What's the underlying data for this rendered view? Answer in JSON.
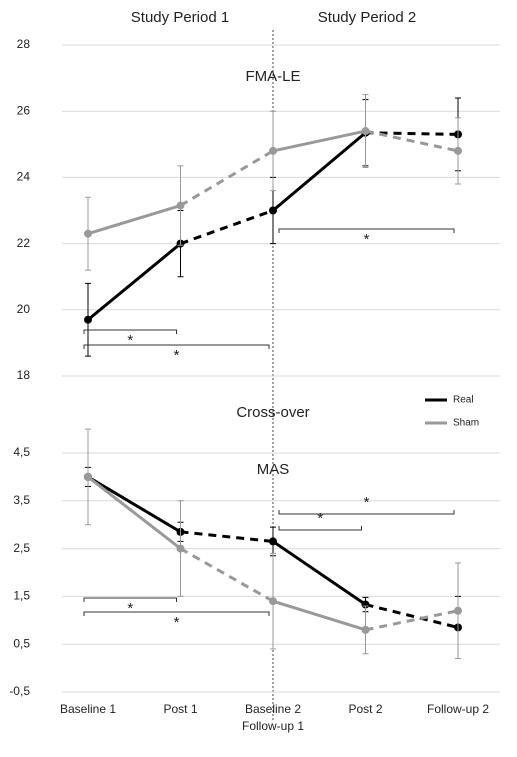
{
  "header": {
    "period_1": "Study Period  1",
    "period_2": "Study Period  2"
  },
  "annotation": "Cross-over",
  "chart_data": [
    {
      "type": "line",
      "title": "FMA-LE",
      "categories": [
        "Baseline 1",
        "Post 1",
        "Baseline 2",
        "Post 2",
        "Follow-up 2"
      ],
      "category_sublabels": [
        null,
        null,
        "Follow-up 1",
        null,
        null
      ],
      "ylim": [
        18,
        28
      ],
      "yticks": [
        18,
        20,
        22,
        24,
        26,
        28
      ],
      "grid": true,
      "legend": true,
      "series": [
        {
          "name": "Real",
          "color": "#000000",
          "values": [
            19.7,
            22.0,
            23.0,
            25.35,
            25.3
          ],
          "errors": [
            1.1,
            1.0,
            1.0,
            1.0,
            1.1
          ]
        },
        {
          "name": "Sham",
          "color": "#999999",
          "values": [
            22.3,
            23.15,
            24.8,
            25.4,
            24.8
          ],
          "errors": [
            1.1,
            1.2,
            1.2,
            1.1,
            1.0
          ]
        }
      ],
      "significance": [
        {
          "from": 0,
          "to": 1,
          "label": "*"
        },
        {
          "from": 0,
          "to": 2,
          "label": "*"
        },
        {
          "from": 2,
          "to": 4,
          "label": "*"
        }
      ]
    },
    {
      "type": "line",
      "title": "MAS",
      "categories": [
        "Baseline 1",
        "Post 1",
        "Baseline 2",
        "Post 2",
        "Follow-up 2"
      ],
      "category_sublabels": [
        null,
        null,
        "Follow-up 1",
        null,
        null
      ],
      "ylim": [
        -0.5,
        4.5
      ],
      "yticks": [
        {
          "value": -0.5,
          "label": "-0,5"
        },
        {
          "value": 0.5,
          "label": "0,5"
        },
        {
          "value": 1.5,
          "label": "1,5"
        },
        {
          "value": 2.5,
          "label": "2,5"
        },
        {
          "value": 3.5,
          "label": "3,5"
        },
        {
          "value": 4.5,
          "label": "4,5"
        }
      ],
      "grid": true,
      "legend": false,
      "series": [
        {
          "color": "#000000",
          "values": [
            4.0,
            2.85,
            2.65,
            1.33,
            0.85
          ],
          "errors": [
            0.2,
            0.2,
            0.3,
            0.15,
            0.65
          ]
        },
        {
          "color": "#999999",
          "values": [
            4.0,
            2.5,
            1.4,
            0.8,
            1.2
          ],
          "errors": [
            1.0,
            1.0,
            1.0,
            0.5,
            1.0
          ]
        }
      ],
      "significance": [
        {
          "from": 0,
          "to": 1,
          "label": "*"
        },
        {
          "from": 0,
          "to": 2,
          "label": "*"
        },
        {
          "from": 2,
          "to": 3,
          "label": "*"
        },
        {
          "from": 2,
          "to": 4,
          "label": "*"
        }
      ]
    }
  ]
}
